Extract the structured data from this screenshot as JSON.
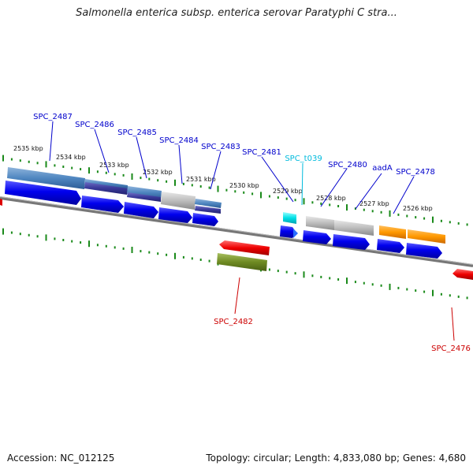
{
  "title": "Salmonella enterica subsp. enterica serovar Paratyphi C stra...",
  "footer": {
    "accession": "Accession: NC_012125",
    "topology": "Topology: circular; Length: 4,833,080 bp; Genes: 4,680"
  },
  "colors": {
    "label_blue": "#0000cc",
    "label_red": "#cc0000",
    "label_cyan": "#00bbdd",
    "tick_green": "#1a8a1a",
    "backbone": "#777777"
  },
  "kbp_ticks": [
    "2535 kbp",
    "2534 kbp",
    "2533 kbp",
    "2532 kbp",
    "2531 kbp",
    "2530 kbp",
    "2529 kbp",
    "2528 kbp",
    "2527 kbp",
    "2526 kbp"
  ],
  "genes": [
    "SPC_2487",
    "SPC_2486",
    "SPC_2485",
    "SPC_2484",
    "SPC_2483",
    "SPC_2481",
    "SPC_t039",
    "SPC_2480",
    "aadA",
    "SPC_2478",
    "SPC_2482",
    "SPC_2476"
  ]
}
